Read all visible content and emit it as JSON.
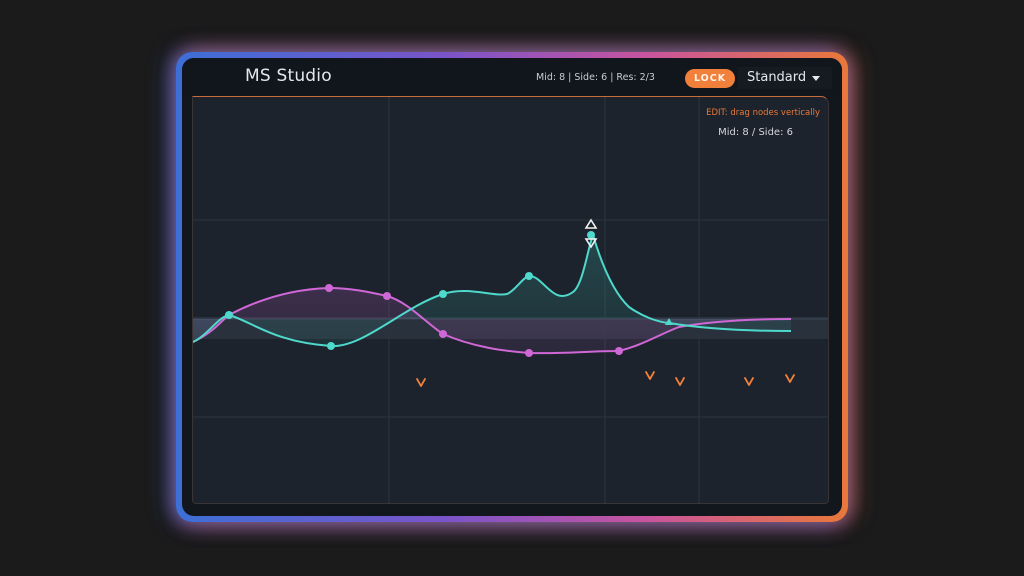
{
  "app": {
    "title": "MS Studio"
  },
  "header": {
    "status": "Mid: 8 | Side: 6 | Res: 2/3",
    "lock_label": "LOCK",
    "mode_selected": "Standard"
  },
  "plot": {
    "edit_hint": "EDIT: drag nodes vertically",
    "count_label": "Mid: 8 / Side: 6"
  },
  "colors": {
    "mid": "#4fd8cc",
    "side": "#d067d6",
    "accent": "#f0803a",
    "background": "#1b1b1c"
  },
  "icons": {
    "selected_node_up": "triangle-up-icon",
    "selected_node_down": "triangle-down-icon",
    "side_marker": "chevron-down-icon",
    "mid_marker": "triangle-icon"
  }
}
